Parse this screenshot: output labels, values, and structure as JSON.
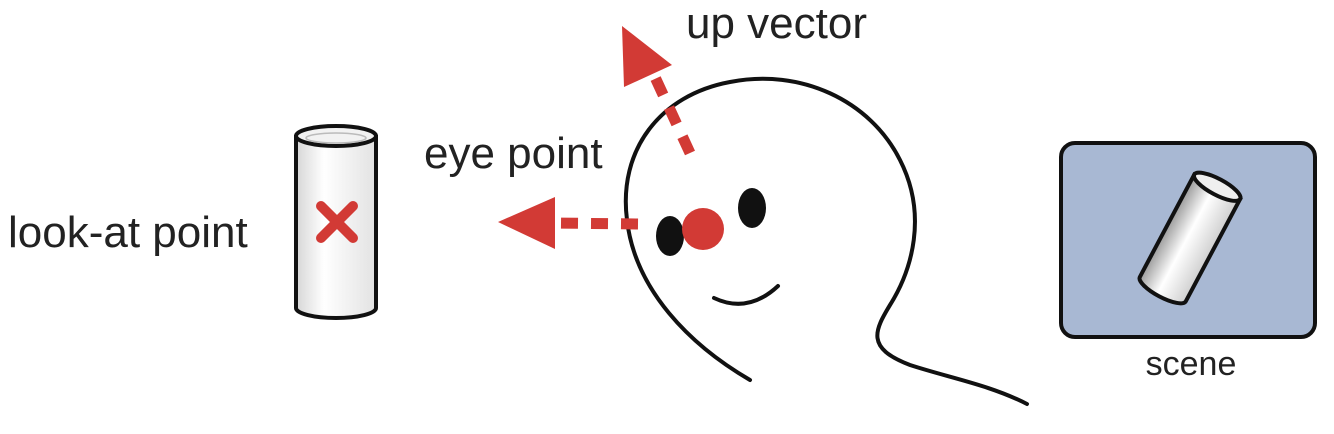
{
  "labels": {
    "up_vector": "up vector",
    "eye_point": "eye point",
    "look_at_point": "look-at point",
    "scene": "scene"
  },
  "colors": {
    "accent_red": "#d23a35",
    "outline": "#111111",
    "text": "#222222",
    "scene_panel": "#a8b8d3",
    "cylinder_fill": "#f4f4f4"
  }
}
